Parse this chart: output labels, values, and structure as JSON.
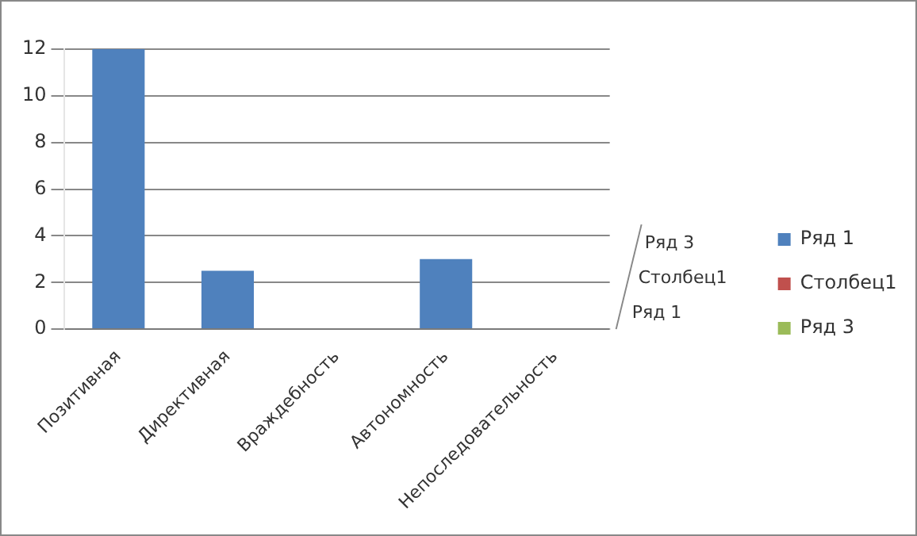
{
  "chart_data": {
    "type": "bar",
    "categories": [
      "Позитивная",
      "Директивная",
      "Враждебность",
      "Автономность",
      "Непоследовательность"
    ],
    "series": [
      {
        "name": "Ряд 1",
        "color": "#4f81bd",
        "values": [
          12,
          2.5,
          0,
          3,
          0
        ]
      },
      {
        "name": "Столбец1",
        "color": "#c0504d",
        "values": [
          null,
          null,
          null,
          null,
          null
        ]
      },
      {
        "name": "Ряд 3",
        "color": "#9bbb59",
        "values": [
          null,
          null,
          null,
          null,
          null
        ]
      }
    ],
    "ylim": [
      0,
      12
    ],
    "yticks": [
      0,
      2,
      4,
      6,
      8,
      10,
      12
    ],
    "grid": "y",
    "legend": "right"
  }
}
